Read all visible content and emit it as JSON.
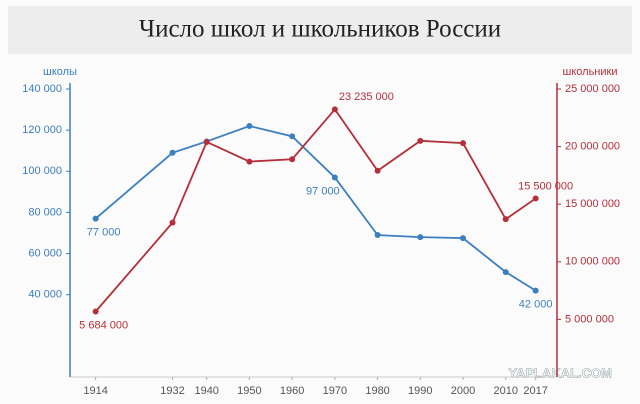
{
  "chart_data": {
    "type": "line",
    "title": "Число школ и школьников России",
    "ylabel": "школы",
    "y2label": "школьники",
    "watermark": "YAPLAKAL.COM",
    "x": [
      1914,
      1932,
      1940,
      1950,
      1960,
      1970,
      1980,
      1990,
      2000,
      2010,
      2017
    ],
    "xlim": [
      1908,
      2022
    ],
    "xticks": [
      1914,
      1932,
      1940,
      1950,
      1960,
      1970,
      1980,
      1990,
      2000,
      2010,
      2017
    ],
    "ylim": [
      0,
      140000
    ],
    "yticks": [
      {
        "value": 40000,
        "label": "40 000"
      },
      {
        "value": 60000,
        "label": "60 000"
      },
      {
        "value": 80000,
        "label": "80 000"
      },
      {
        "value": 100000,
        "label": "100 000"
      },
      {
        "value": 120000,
        "label": "120 000"
      },
      {
        "value": 140000,
        "label": "140 000"
      }
    ],
    "y2lim": [
      0,
      25000000
    ],
    "y2ticks": [
      {
        "value": 5000000,
        "label": "5 000 000"
      },
      {
        "value": 10000000,
        "label": "10 000 000"
      },
      {
        "value": 15000000,
        "label": "15 000 000"
      },
      {
        "value": 20000000,
        "label": "20 000 000"
      },
      {
        "value": 25000000,
        "label": "25 000 000"
      }
    ],
    "series": [
      {
        "name": "школы",
        "color": "#3b7fc0",
        "axis": "y",
        "values": [
          77000,
          109000,
          114500,
          122000,
          117000,
          97000,
          69000,
          68000,
          67500,
          51000,
          42000
        ],
        "value_labels": [
          "77 000",
          null,
          null,
          null,
          null,
          "97 000",
          null,
          null,
          null,
          null,
          "42 000"
        ]
      },
      {
        "name": "школьники",
        "color": "#b3303a",
        "axis": "y2",
        "values": [
          5684000,
          13400000,
          20400000,
          18700000,
          18900000,
          23235000,
          17900000,
          20500000,
          20300000,
          13700000,
          15500000
        ],
        "value_labels": [
          "5 684 000",
          null,
          null,
          null,
          null,
          "23 235 000",
          null,
          null,
          null,
          null,
          "15 500 000"
        ]
      }
    ]
  }
}
